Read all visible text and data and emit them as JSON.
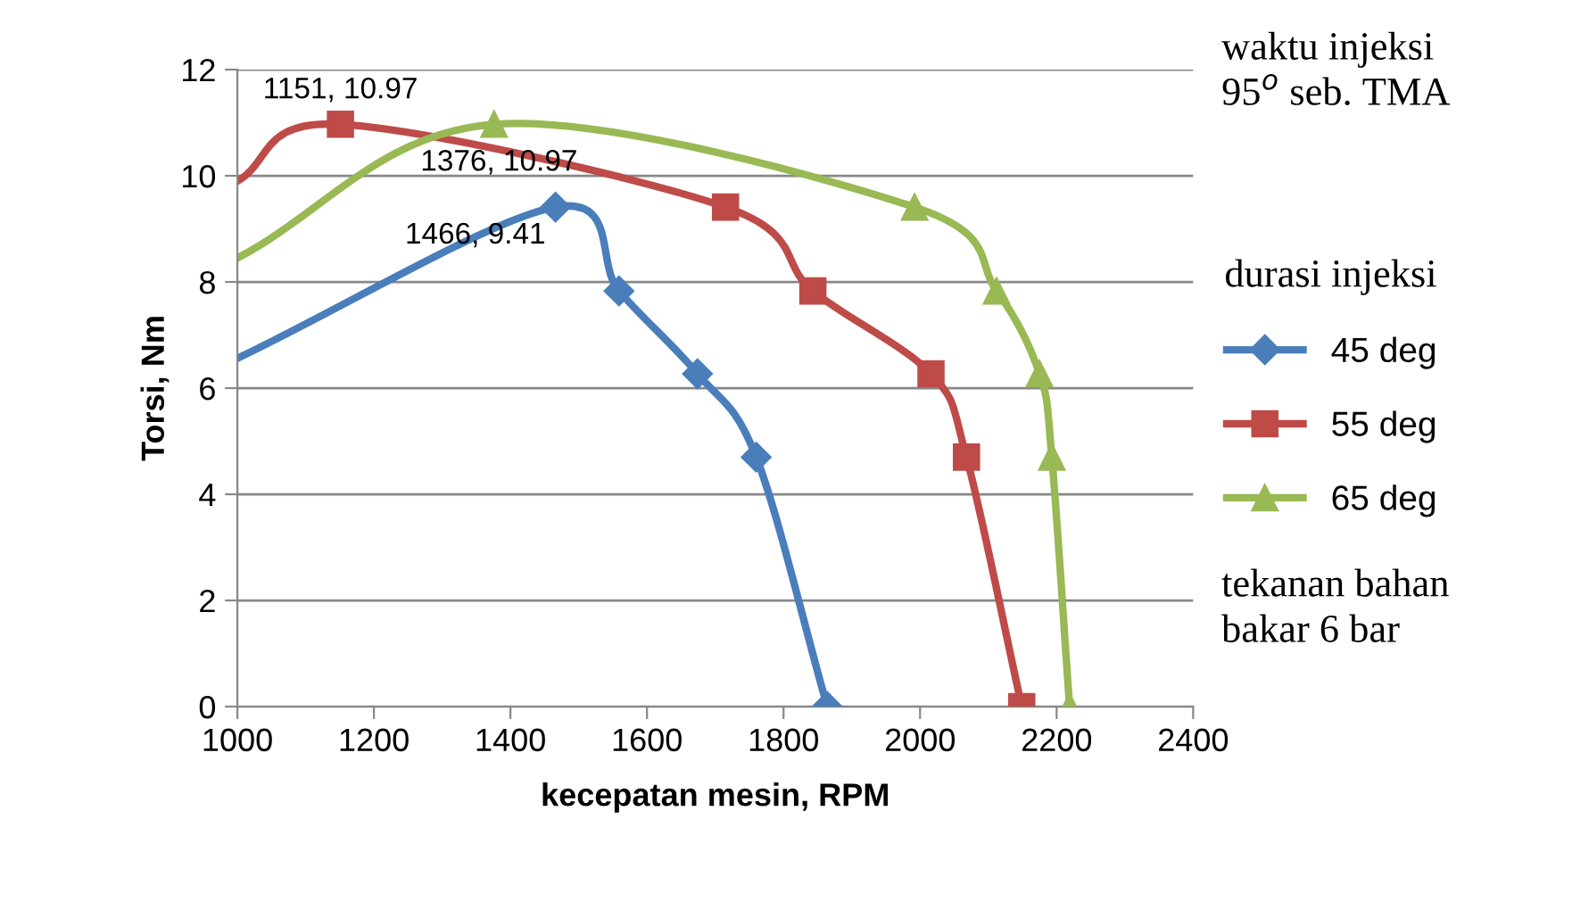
{
  "chart_data": {
    "type": "line",
    "xlabel": "kecepatan mesin, RPM",
    "ylabel": "Torsi, Nm",
    "legend_title": "durasi injeksi",
    "legend": "right",
    "xlim": [
      1000,
      2400
    ],
    "xticks": [
      1000,
      1200,
      1400,
      1600,
      1800,
      2000,
      2200,
      2400
    ],
    "ylim": [
      0,
      12
    ],
    "yticks": [
      0,
      2,
      4,
      6,
      8,
      10,
      12
    ],
    "grid": "y",
    "series": [
      {
        "name": "45 deg",
        "color": "#4a7ebb",
        "marker": "diamond",
        "x": [
          1000,
          1466,
          1559,
          1674,
          1760,
          1864
        ],
        "values": [
          6.56,
          9.41,
          7.83,
          6.27,
          4.7,
          0
        ]
      },
      {
        "name": "55 deg",
        "color": "#be4b48",
        "marker": "square",
        "x": [
          1000,
          1151,
          1715,
          1843,
          2016,
          2068,
          2149
        ],
        "values": [
          9.9,
          10.97,
          9.41,
          7.83,
          6.27,
          4.7,
          0
        ]
      },
      {
        "name": "65 deg",
        "color": "#98b954",
        "marker": "triangle",
        "x": [
          1000,
          1376,
          1992,
          2112,
          2175,
          2193,
          2219
        ],
        "values": [
          8.45,
          10.97,
          9.41,
          7.83,
          6.27,
          4.7,
          0
        ]
      }
    ],
    "annotations": [
      {
        "text": "1151, 10.97",
        "x": 1151,
        "y": 10.97
      },
      {
        "text": "1376, 10.97",
        "x": 1376,
        "y": 10.97
      },
      {
        "text": "1466, 9.41",
        "x": 1466,
        "y": 9.41
      },
      "waktu injeksi\n95$^{o}$ seb. TMA",
      "tekanan bahan\nbakar 6 bar"
    ]
  }
}
